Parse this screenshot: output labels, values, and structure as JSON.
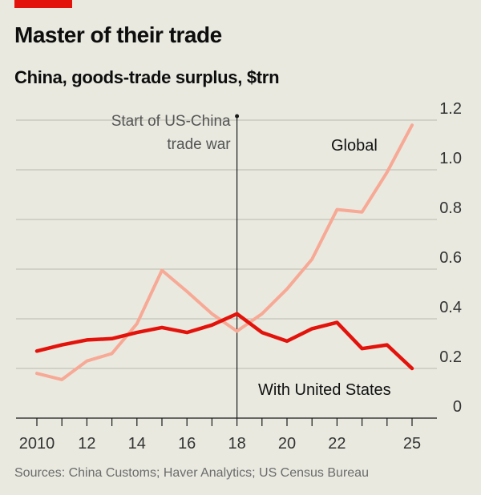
{
  "title": "Master of their trade",
  "subtitle": "China, goods-trade surplus, $trn",
  "source": "Sources: China Customs; Haver Analytics; US Census Bureau",
  "chart_data": {
    "type": "line",
    "x": [
      2010,
      2011,
      2012,
      2013,
      2014,
      2015,
      2016,
      2017,
      2018,
      2019,
      2020,
      2021,
      2022,
      2023,
      2024,
      2025
    ],
    "xticks": [
      "2010",
      "12",
      "14",
      "16",
      "18",
      "20",
      "22",
      "25"
    ],
    "xtick_values": [
      2010,
      2012,
      2014,
      2016,
      2018,
      2020,
      2022,
      2025
    ],
    "xlim": [
      2009.9,
      2025.05
    ],
    "ylim": [
      0,
      1.2
    ],
    "yticks": [
      "0",
      "0.2",
      "0.4",
      "0.6",
      "0.8",
      "1.0",
      "1.2"
    ],
    "ytick_values": [
      0,
      0.2,
      0.4,
      0.6,
      0.8,
      1.0,
      1.2
    ],
    "grid": true,
    "series": [
      {
        "name": "Global",
        "color": "#f7a995",
        "values": [
          0.18,
          0.155,
          0.23,
          0.26,
          0.38,
          0.595,
          0.51,
          0.42,
          0.35,
          0.42,
          0.52,
          0.64,
          0.84,
          0.83,
          0.99,
          1.18
        ]
      },
      {
        "name": "With United States",
        "color": "#e3120b",
        "values": [
          0.27,
          0.295,
          0.315,
          0.32,
          0.345,
          0.365,
          0.345,
          0.375,
          0.42,
          0.345,
          0.31,
          0.36,
          0.385,
          0.28,
          0.295,
          0.2
        ]
      }
    ],
    "annotation": {
      "x": 2018,
      "lines": [
        "Start of US-China",
        "trade war"
      ]
    }
  }
}
